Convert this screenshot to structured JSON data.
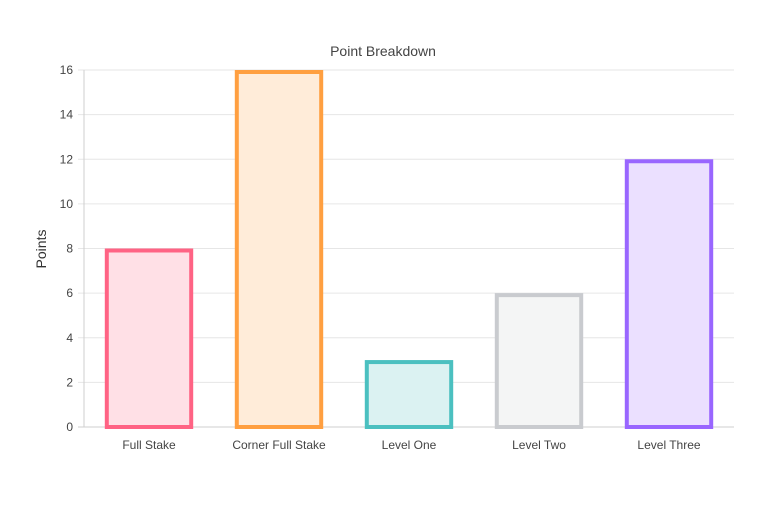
{
  "chart_data": {
    "type": "bar",
    "title": "Point Breakdown",
    "xlabel": "",
    "ylabel": "Points",
    "ylim": [
      0,
      16
    ],
    "yticks": [
      0,
      2,
      4,
      6,
      8,
      10,
      12,
      14,
      16
    ],
    "grid": true,
    "legend": "none",
    "categories": [
      "Full Stake",
      "Corner Full Stake",
      "Level One",
      "Level Two",
      "Level Three"
    ],
    "values": [
      8,
      16,
      3,
      6,
      12
    ],
    "colors": {
      "borders": [
        "#ff6384",
        "#ff9f40",
        "#4bc0c0",
        "#c9cbcf",
        "#9966ff"
      ],
      "fills": [
        "#ffe0e6",
        "#ffecd9",
        "#dbf2f2",
        "#f4f5f5",
        "#ebe0ff"
      ]
    }
  }
}
